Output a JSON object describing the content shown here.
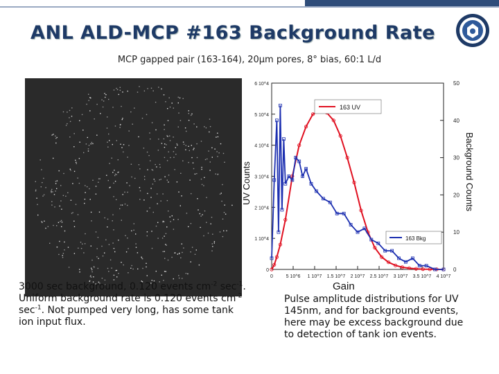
{
  "slide": {
    "title": "ANL ALD-MCP #163 Background Rate",
    "subtitle": "MCP gapped pair (163-164), 20µm pores, 8° bias, 60:1 L/d"
  },
  "left_caption": {
    "line1_main": "3000 sec background, 0.120 events cm",
    "exp1": "-2",
    "line1_mid": " sec",
    "exp2": "-1",
    "line1_end": ".",
    "line2_main": "Uniform background rate is  0.120 events cm",
    "exp3": "-2",
    "line3_start": "sec",
    "exp4": "-1",
    "line3_end": ".  Not pumped very long, has some tank ion input flux."
  },
  "right_caption": "Pulse amplitude distributions for UV 145nm, and for background events, here may be excess background due to detection of tank ion events.",
  "colors": {
    "title": "#1e3a66",
    "uv": "#e01020",
    "bkg": "#1c2fb0"
  },
  "chart_data": {
    "type": "line",
    "xlabel": "Gain",
    "ylabel": "UV Counts",
    "y2label": "Background Counts",
    "xlim": [
      0,
      10000000
    ],
    "ylim": [
      0,
      60000
    ],
    "y2lim": [
      0,
      50
    ],
    "x_ticks": [
      "0",
      "5 10^6",
      "1 10^7",
      "1.5 10^7",
      "2 10^7",
      "2.5 10^7",
      "3 10^7",
      "3.5 10^7",
      "4 10^7"
    ],
    "y_ticks": [
      "0",
      "1 10^4",
      "2 10^4",
      "3 10^4",
      "4 10^4",
      "5 10^4",
      "6 10^4"
    ],
    "y2_ticks": [
      "0",
      "10",
      "20",
      "30",
      "40",
      "50"
    ],
    "legend_position": "top-right and middle-right",
    "series": [
      {
        "name": "163 UV",
        "axis": "left",
        "x": [
          0,
          0.15,
          0.3,
          0.5,
          0.8,
          1.2,
          1.6,
          2.0,
          2.4,
          2.8,
          3.2,
          3.6,
          4.0,
          4.4,
          4.8,
          5.2,
          5.6,
          6.0,
          6.4,
          6.8,
          7.2,
          7.6,
          8.0,
          8.4,
          8.8,
          9.2,
          9.6,
          10.0
        ],
        "y": [
          0,
          1500,
          4000,
          8000,
          16000,
          30000,
          40000,
          46000,
          50000,
          51000,
          50500,
          48000,
          43000,
          36000,
          28000,
          19000,
          12000,
          7000,
          4000,
          2300,
          1300,
          700,
          400,
          200,
          100,
          50,
          20,
          0
        ]
      },
      {
        "name": "163 Bkg",
        "axis": "right",
        "x": [
          0,
          0.15,
          0.3,
          0.4,
          0.5,
          0.6,
          0.7,
          0.8,
          1.0,
          1.2,
          1.4,
          1.6,
          1.8,
          2.0,
          2.3,
          2.6,
          3.0,
          3.4,
          3.8,
          4.2,
          4.6,
          5.0,
          5.4,
          5.8,
          6.2,
          6.6,
          7.0,
          7.4,
          7.8,
          8.2,
          8.6,
          9.0,
          9.5,
          10.0
        ],
        "y": [
          3,
          24,
          40,
          10,
          44,
          16,
          35,
          23,
          25,
          24,
          30,
          29,
          25,
          27,
          23,
          21,
          19,
          18,
          15,
          15,
          12,
          10,
          11,
          8,
          7,
          5,
          5,
          3,
          2,
          3,
          1,
          1,
          0,
          0
        ]
      }
    ]
  }
}
